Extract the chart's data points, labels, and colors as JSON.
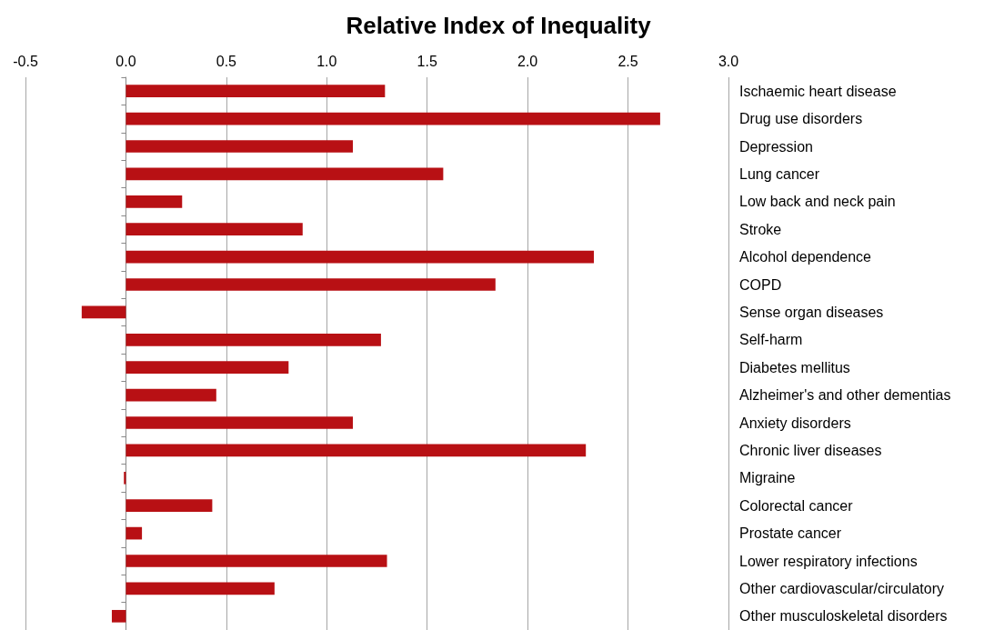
{
  "chart_data": {
    "type": "bar",
    "orientation": "horizontal",
    "title": "Relative Index of Inequality",
    "categories": [
      "Ischaemic heart disease",
      "Drug use disorders",
      "Depression",
      "Lung cancer",
      "Low back and neck pain",
      "Stroke",
      "Alcohol dependence",
      "COPD",
      "Sense organ diseases",
      "Self-harm",
      "Diabetes mellitus",
      "Alzheimer's and other dementias",
      "Anxiety disorders",
      "Chronic liver diseases",
      "Migraine",
      "Colorectal cancer",
      "Prostate cancer",
      "Lower respiratory infections",
      "Other cardiovascular/circulatory",
      "Other musculoskeletal disorders"
    ],
    "values": [
      1.29,
      2.66,
      1.13,
      1.58,
      0.28,
      0.88,
      2.33,
      1.84,
      -0.22,
      1.27,
      0.81,
      0.45,
      1.13,
      2.29,
      -0.01,
      0.43,
      0.08,
      1.3,
      0.74,
      -0.07
    ],
    "color": "#b81014",
    "xlim": [
      -0.5,
      3.0
    ],
    "xticks": [
      {
        "value": -0.5,
        "label": "-0.5"
      },
      {
        "value": 0,
        "label": "0.0"
      },
      {
        "value": 0.5,
        "label": "0.5"
      },
      {
        "value": 1,
        "label": "1.0"
      },
      {
        "value": 1.5,
        "label": "1.5"
      },
      {
        "value": 2,
        "label": "2.0"
      },
      {
        "value": 2.5,
        "label": "2.5"
      },
      {
        "value": 3,
        "label": "3.0"
      }
    ],
    "grid": "x"
  }
}
